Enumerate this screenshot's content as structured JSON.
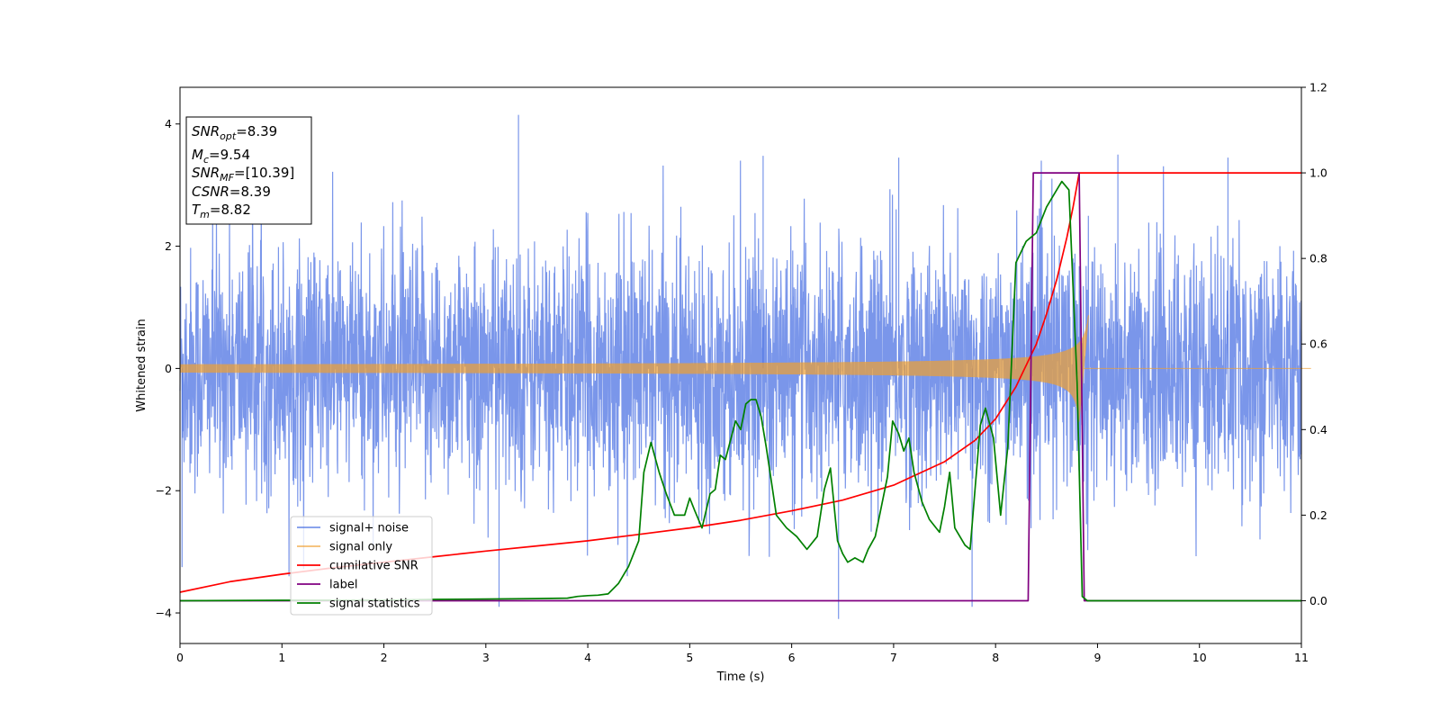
{
  "chart_data": {
    "type": "line",
    "title": "",
    "xlabel": "Time (s)",
    "ylabel": "Whitened strain",
    "xlim": [
      0,
      11
    ],
    "ylim": [
      -4.5,
      4.6
    ],
    "y2lim": [
      -0.1,
      1.2
    ],
    "xticks": [
      "0",
      "1",
      "2",
      "3",
      "4",
      "5",
      "6",
      "7",
      "8",
      "9",
      "10",
      "11"
    ],
    "yticks": [
      "−4",
      "−2",
      "0",
      "2",
      "4"
    ],
    "y2ticks": [
      "0.0",
      "0.2",
      "0.4",
      "0.6",
      "0.8",
      "1.0",
      "1.2"
    ],
    "grid": false,
    "legend_position": "lower-left",
    "annotation": [
      {
        "sym": "SNR",
        "sub": "opt",
        "val": "=8.39"
      },
      {
        "sym": "M",
        "sub": "c",
        "val": "=9.54"
      },
      {
        "sym": "SNR",
        "sub": "MF",
        "val": "=[10.39]"
      },
      {
        "sym": "CSNR",
        "sub": "",
        "val": "=8.39"
      },
      {
        "sym": "T",
        "sub": "m",
        "val": "=8.82"
      }
    ],
    "series": [
      {
        "name": "signal+ noise",
        "axis": "left",
        "color": "#4169e1",
        "kind": "noise",
        "envelope_sigma": 1.0,
        "spikes": [
          [
            3.32,
            4.15
          ],
          [
            5.72,
            3.48
          ],
          [
            7.05,
            3.45
          ],
          [
            9.2,
            3.5
          ],
          [
            10.28,
            3.45
          ],
          [
            6.46,
            -4.1
          ],
          [
            3.13,
            -3.9
          ],
          [
            7.77,
            -3.9
          ],
          [
            0.02,
            -3.25
          ]
        ]
      },
      {
        "name": "signal only",
        "axis": "left",
        "color": "#f0a030",
        "kind": "chirp",
        "merger_time": 8.82,
        "amplitude_at_merger": 0.95
      },
      {
        "name": "cumilative SNR",
        "axis": "right",
        "color": "#ff0000",
        "x": [
          0,
          0.5,
          1,
          1.5,
          2,
          2.5,
          3,
          3.5,
          4,
          4.5,
          5,
          5.5,
          6,
          6.5,
          7,
          7.5,
          7.8,
          8.0,
          8.2,
          8.4,
          8.5,
          8.6,
          8.7,
          8.76,
          8.82,
          11
        ],
        "y": [
          0.02,
          0.045,
          0.062,
          0.077,
          0.09,
          0.103,
          0.116,
          0.128,
          0.14,
          0.155,
          0.17,
          0.188,
          0.21,
          0.235,
          0.27,
          0.325,
          0.375,
          0.425,
          0.5,
          0.6,
          0.67,
          0.75,
          0.85,
          0.92,
          1.0,
          1.0
        ]
      },
      {
        "name": "label",
        "axis": "right",
        "color": "#800080",
        "x": [
          0,
          8.32,
          8.37,
          8.82,
          8.87,
          11
        ],
        "y": [
          0,
          0,
          1,
          1,
          0,
          0
        ]
      },
      {
        "name": "signal statistics",
        "axis": "right",
        "color": "#008000",
        "x": [
          0,
          1,
          2,
          2.5,
          3,
          3.5,
          3.8,
          3.9,
          4.0,
          4.1,
          4.2,
          4.3,
          4.4,
          4.5,
          4.55,
          4.62,
          4.7,
          4.77,
          4.85,
          4.95,
          5.0,
          5.05,
          5.12,
          5.2,
          5.25,
          5.3,
          5.35,
          5.45,
          5.5,
          5.55,
          5.6,
          5.65,
          5.7,
          5.75,
          5.8,
          5.85,
          5.95,
          6.05,
          6.15,
          6.25,
          6.32,
          6.38,
          6.45,
          6.5,
          6.55,
          6.62,
          6.7,
          6.75,
          6.82,
          6.88,
          6.94,
          6.99,
          7.05,
          7.1,
          7.15,
          7.2,
          7.28,
          7.35,
          7.45,
          7.5,
          7.55,
          7.6,
          7.7,
          7.75,
          7.85,
          7.9,
          7.98,
          8.05,
          8.12,
          8.2,
          8.3,
          8.4,
          8.5,
          8.6,
          8.65,
          8.72,
          8.8,
          8.85,
          8.9,
          9.0,
          11
        ],
        "y": [
          0.0,
          0.001,
          0.001,
          0.003,
          0.004,
          0.005,
          0.006,
          0.01,
          0.012,
          0.013,
          0.016,
          0.04,
          0.08,
          0.14,
          0.3,
          0.37,
          0.3,
          0.25,
          0.2,
          0.2,
          0.24,
          0.21,
          0.17,
          0.25,
          0.26,
          0.34,
          0.33,
          0.42,
          0.4,
          0.46,
          0.47,
          0.47,
          0.43,
          0.36,
          0.28,
          0.2,
          0.17,
          0.15,
          0.12,
          0.15,
          0.26,
          0.31,
          0.14,
          0.11,
          0.09,
          0.1,
          0.09,
          0.12,
          0.15,
          0.22,
          0.29,
          0.42,
          0.39,
          0.35,
          0.38,
          0.3,
          0.23,
          0.19,
          0.16,
          0.22,
          0.3,
          0.17,
          0.13,
          0.12,
          0.41,
          0.45,
          0.38,
          0.2,
          0.36,
          0.79,
          0.84,
          0.86,
          0.92,
          0.96,
          0.98,
          0.96,
          0.51,
          0.01,
          0.0,
          0.0,
          0.0
        ]
      }
    ]
  }
}
